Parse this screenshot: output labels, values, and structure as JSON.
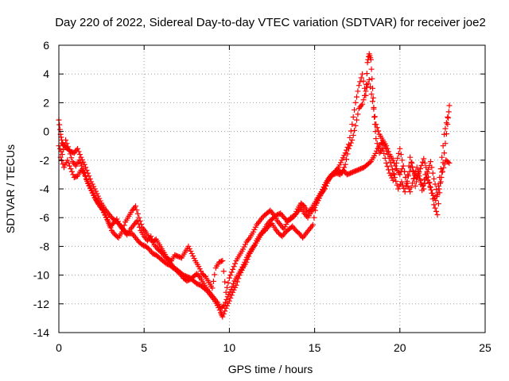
{
  "chart_data": {
    "type": "scatter",
    "title": "Day 220 of 2022, Sidereal Day-to-day VTEC variation (SDTVAR) for receiver joe2",
    "xlabel": "GPS time / hours",
    "ylabel": "SDTVAR / TECUs",
    "xlim": [
      0,
      25
    ],
    "ylim": [
      -14,
      6
    ],
    "xticks": [
      0,
      5,
      10,
      15,
      20,
      25
    ],
    "yticks": [
      -14,
      -12,
      -10,
      -8,
      -6,
      -4,
      -2,
      0,
      2,
      4,
      6
    ],
    "grid": true,
    "marker": "+",
    "series": [
      {
        "name": "SDTVAR",
        "color": "#ff0000",
        "tracks": [
          {
            "x": [
              0.0,
              0.1,
              0.2,
              0.3,
              0.5,
              0.7,
              0.9,
              1.1,
              1.3,
              1.5,
              1.7,
              1.9,
              2.1,
              2.3,
              2.5,
              2.7,
              2.9,
              3.1,
              3.3,
              3.5,
              3.7,
              3.9,
              4.1,
              4.3,
              4.5,
              4.7,
              4.9,
              5.1,
              5.3,
              5.5,
              5.7,
              5.9,
              6.1,
              6.3,
              6.5,
              6.7,
              6.9,
              7.1,
              7.3,
              7.5,
              7.7,
              7.9,
              8.1,
              8.3,
              8.5,
              8.7,
              8.9,
              9.1,
              9.3,
              9.5,
              9.6,
              9.8,
              10.0,
              10.2,
              10.4,
              10.6,
              10.8,
              11.0,
              11.2,
              11.4,
              11.6,
              11.8,
              12.0,
              12.2,
              12.4,
              12.6,
              12.8,
              13.0,
              13.2,
              13.4,
              13.6,
              13.8,
              14.0,
              14.2,
              14.4,
              14.6,
              14.8,
              15.0,
              15.2,
              15.4,
              15.6,
              15.8,
              16.0,
              16.2,
              16.4,
              16.6,
              16.8,
              17.0,
              17.2,
              17.4,
              17.6,
              17.8,
              18.0,
              18.1,
              18.2,
              18.3,
              18.4,
              18.5,
              18.6,
              18.8,
              19.0,
              19.2,
              19.4,
              19.6,
              19.8,
              20.0,
              20.2,
              20.4,
              20.6,
              20.8,
              21.0,
              21.2,
              21.4,
              21.6,
              21.8,
              22.0,
              22.2,
              22.4,
              22.6,
              22.8,
              22.9
            ],
            "y": [
              0.8,
              -0.2,
              -0.8,
              -1.0,
              -1.2,
              -1.4,
              -1.5,
              -1.2,
              -1.8,
              -2.3,
              -2.9,
              -3.5,
              -4.0,
              -4.5,
              -5.0,
              -5.4,
              -5.7,
              -6.0,
              -6.2,
              -6.4,
              -6.7,
              -7.0,
              -7.1,
              -7.1,
              -7.4,
              -7.7,
              -7.9,
              -8.0,
              -8.2,
              -8.5,
              -8.6,
              -8.8,
              -9.0,
              -9.2,
              -9.3,
              -9.5,
              -9.6,
              -9.8,
              -10.0,
              -10.1,
              -10.2,
              -10.4,
              -10.6,
              -10.7,
              -10.9,
              -11.1,
              -11.4,
              -11.7,
              -12.1,
              -12.6,
              -12.9,
              -12.3,
              -11.8,
              -11.2,
              -10.7,
              -10.0,
              -9.5,
              -9.1,
              -8.5,
              -8.1,
              -7.6,
              -7.2,
              -6.9,
              -6.5,
              -6.2,
              -6.0,
              -5.8,
              -5.7,
              -6.0,
              -6.2,
              -6.1,
              -5.9,
              -5.4,
              -5.0,
              -5.2,
              -5.6,
              -5.4,
              -5.0,
              -4.6,
              -4.2,
              -3.7,
              -3.3,
              -3.0,
              -2.8,
              -2.5,
              -2.0,
              -1.5,
              -0.9,
              0.5,
              2.0,
              3.2,
              4.0,
              2.5,
              4.8,
              5.4,
              5.0,
              3.0,
              1.0,
              -0.5,
              -1.5,
              -1.2,
              -2.2,
              -2.9,
              -3.4,
              -2.2,
              -1.2,
              -2.4,
              -3.6,
              -1.8,
              -2.8,
              -3.2,
              -2.6,
              -1.9,
              -2.8,
              -3.9,
              -5.1,
              -5.8,
              -3.5,
              -1.5,
              0.5,
              1.8
            ]
          },
          {
            "x": [
              0.1,
              0.3,
              0.5,
              0.7,
              0.9,
              1.1,
              1.3,
              1.5,
              1.7,
              1.9,
              2.1,
              2.3,
              2.5,
              2.7,
              2.9,
              3.1,
              3.3,
              3.5,
              3.7,
              3.9,
              4.1,
              4.3,
              4.5,
              4.7,
              4.9,
              5.1,
              5.3,
              5.5,
              5.7,
              5.9,
              6.1,
              6.3,
              6.5,
              6.7,
              6.9,
              7.1,
              7.3,
              7.5,
              7.7,
              7.9,
              8.1,
              8.3,
              8.5,
              8.7,
              8.9,
              9.1,
              9.3,
              9.5,
              9.7,
              9.9,
              10.1,
              10.3,
              10.5,
              10.7,
              10.9,
              11.1,
              11.3,
              11.5,
              11.7,
              11.9,
              12.1,
              12.3,
              12.5,
              12.7,
              12.9,
              13.1,
              13.3,
              13.5,
              13.7,
              13.9,
              14.1,
              14.3,
              14.5,
              14.7,
              14.9,
              15.1,
              15.3,
              15.5,
              15.7,
              15.9,
              16.1,
              16.3,
              16.5,
              16.7,
              16.9,
              17.1,
              17.3,
              17.5,
              17.7,
              17.9,
              18.1,
              18.3,
              18.5,
              18.7,
              18.9,
              19.1,
              19.3,
              19.5,
              19.7,
              19.9,
              20.1,
              20.3,
              20.5,
              20.7,
              20.9,
              21.1,
              21.3,
              21.5,
              21.7,
              21.9,
              22.1,
              22.3,
              22.5,
              22.7,
              22.9
            ],
            "y": [
              -1.8,
              -2.5,
              -2.0,
              -2.6,
              -3.2,
              -3.1,
              -2.7,
              -2.9,
              -3.6,
              -4.1,
              -4.6,
              -5.0,
              -5.3,
              -5.8,
              -6.3,
              -6.9,
              -7.2,
              -7.4,
              -7.0,
              -6.3,
              -5.9,
              -5.5,
              -5.2,
              -6.0,
              -6.7,
              -7.0,
              -7.4,
              -7.7,
              -7.5,
              -7.9,
              -8.3,
              -8.7,
              -9.1,
              -9.4,
              -9.7,
              -9.9,
              -10.2,
              -10.4,
              -10.3,
              -10.1,
              -9.9,
              -10.2,
              -10.6,
              -11.0,
              -11.3,
              -11.6,
              -11.9,
              -12.3,
              -12.1,
              -11.5,
              -11.0,
              -10.4,
              -10.0,
              -9.6,
              -9.1,
              -8.6,
              -8.2,
              -7.9,
              -7.5,
              -7.1,
              -6.9,
              -6.6,
              -6.4,
              -6.8,
              -7.1,
              -7.3,
              -7.0,
              -6.8,
              -6.6,
              -6.9,
              -7.1,
              -7.4,
              -7.1,
              -6.8,
              -6.5,
              -5.0,
              -4.5,
              -4.1,
              -3.6,
              -3.2,
              -3.0,
              -2.9,
              -3.0,
              -2.7,
              -3.0,
              -2.9,
              -2.8,
              -2.7,
              -2.6,
              -2.5,
              -2.3,
              -2.1,
              -1.7,
              -1.2,
              -0.8,
              -0.9,
              -1.6,
              -2.4,
              -3.2,
              -4.0,
              -3.5,
              -4.2,
              -3.1,
              -2.2,
              -3.8,
              -2.9,
              -4.1,
              -3.0,
              -3.6,
              -4.3,
              -4.8,
              -4.0,
              -2.8,
              -2.0,
              -2.2
            ]
          },
          {
            "x": [
              0.0,
              0.2,
              0.4,
              0.6,
              0.8,
              1.0,
              1.2,
              1.4,
              1.6,
              1.8,
              2.0,
              2.2,
              2.4,
              2.6,
              2.8,
              3.0,
              3.2,
              3.4,
              3.6,
              3.8,
              4.0,
              4.2,
              4.4,
              4.6,
              4.8,
              5.0,
              5.2,
              5.4,
              5.6,
              5.8,
              6.0,
              6.2,
              6.4,
              6.6,
              6.8,
              7.0,
              7.2,
              7.4,
              7.6,
              7.8,
              8.0,
              8.2,
              8.4,
              8.6,
              8.8,
              9.0,
              9.2,
              9.4,
              9.6,
              9.8,
              10.0,
              10.2,
              10.4,
              10.6,
              10.8,
              11.0,
              11.2,
              11.4,
              11.6,
              11.8,
              12.0,
              12.2,
              12.4,
              12.6,
              12.8,
              13.0,
              13.2,
              13.4,
              13.6,
              13.8,
              14.0,
              14.2,
              14.4,
              14.6,
              14.8,
              15.0,
              15.2,
              15.4,
              15.6,
              15.8,
              16.0,
              16.2,
              16.4,
              16.6,
              16.8,
              17.0,
              17.2,
              17.4,
              17.6,
              17.8,
              18.0,
              18.2,
              18.4,
              18.6,
              18.8,
              19.0,
              19.2,
              19.4,
              19.6,
              19.8,
              20.0,
              20.2,
              20.4,
              20.6,
              20.8,
              21.0,
              21.2,
              21.4,
              21.6,
              21.8,
              22.0,
              22.2,
              22.4,
              22.6,
              22.8
            ],
            "y": [
              -1.0,
              -1.6,
              -0.6,
              -1.3,
              -2.1,
              -2.4,
              -2.0,
              -2.6,
              -3.3,
              -3.8,
              -4.3,
              -4.8,
              -5.2,
              -5.5,
              -6.0,
              -6.6,
              -6.4,
              -6.1,
              -6.6,
              -6.9,
              -7.2,
              -6.8,
              -6.5,
              -6.2,
              -6.9,
              -7.3,
              -7.6,
              -7.3,
              -7.9,
              -8.2,
              -8.4,
              -8.7,
              -8.9,
              -9.0,
              -8.6,
              -8.7,
              -8.8,
              -8.4,
              -8.0,
              -8.5,
              -9.0,
              -9.4,
              -9.9,
              -10.1,
              -10.5,
              -10.9,
              -9.5,
              -9.1,
              -9.0,
              -11.2,
              -10.2,
              -9.6,
              -9.0,
              -8.6,
              -8.2,
              -7.7,
              -7.4,
              -7.0,
              -6.5,
              -6.2,
              -5.9,
              -5.7,
              -5.5,
              -5.8,
              -6.2,
              -6.5,
              -6.8,
              -6.3,
              -6.0,
              -5.9,
              -5.6,
              -5.3,
              -5.7,
              -6.0,
              -5.6,
              -5.3,
              -4.8,
              -4.3,
              -4.0,
              -3.4,
              -3.0,
              -2.8,
              -2.7,
              -2.9,
              -2.3,
              -1.2,
              -0.6,
              0.4,
              1.6,
              1.9,
              2.8,
              3.6,
              2.1,
              0.5,
              -0.2,
              -0.6,
              -1.0,
              -1.6,
              -2.0,
              -2.6,
              -3.0,
              -2.4,
              -3.6,
              -4.2,
              -3.3,
              -2.5,
              -3.4,
              -4.0,
              -2.9,
              -2.1,
              -3.3,
              -4.4,
              -2.6,
              -0.2,
              1.0
            ]
          }
        ]
      }
    ]
  }
}
